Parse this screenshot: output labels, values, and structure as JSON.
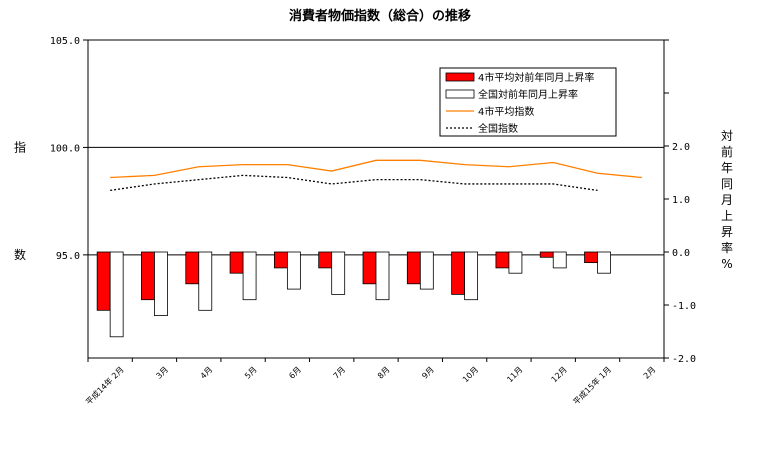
{
  "chart_data": {
    "type": "bar",
    "title": "消費者物価指数（総合）の推移",
    "categories": [
      "平成14年 2月",
      "3月",
      "4月",
      "5月",
      "6月",
      "7月",
      "8月",
      "9月",
      "10月",
      "11月",
      "12月",
      "平成15年 1月",
      "2月"
    ],
    "left_axis": {
      "label": "指数",
      "ticks": [
        "105.0",
        "100.0",
        "95.0"
      ],
      "ylim": [
        90.2,
        105.0
      ]
    },
    "right_axis": {
      "label": "対前年同月上昇率%",
      "ticks": [
        "2.0",
        "1.0",
        "0.0",
        "-1.0",
        "-2.0"
      ],
      "ylim": [
        -2.0,
        4.0
      ]
    },
    "series": [
      {
        "name": "4市平均対前年同月上昇率",
        "type": "bar",
        "axis": "right",
        "color": "#ff0000",
        "values": [
          -1.1,
          -0.9,
          -0.6,
          -0.4,
          -0.3,
          -0.3,
          -0.6,
          -0.6,
          -0.8,
          -0.3,
          -0.1,
          -0.2,
          null
        ]
      },
      {
        "name": "全国対前年同月上昇率",
        "type": "bar",
        "axis": "right",
        "color": "#ffffff",
        "values": [
          -1.6,
          -1.2,
          -1.1,
          -0.9,
          -0.7,
          -0.8,
          -0.9,
          -0.7,
          -0.9,
          -0.4,
          -0.3,
          -0.4,
          null
        ]
      },
      {
        "name": "4市平均指数",
        "type": "line",
        "axis": "left",
        "color": "#ff8000",
        "values": [
          98.6,
          98.7,
          99.1,
          99.2,
          99.2,
          98.9,
          99.4,
          99.4,
          99.2,
          99.1,
          99.3,
          98.8,
          98.6
        ]
      },
      {
        "name": "全国指数",
        "type": "line",
        "axis": "left",
        "color": "#000000",
        "dash": true,
        "values": [
          98.0,
          98.3,
          98.5,
          98.7,
          98.6,
          98.3,
          98.5,
          98.5,
          98.3,
          98.3,
          98.3,
          98.0,
          null
        ]
      }
    ],
    "legend_position": "top-right"
  }
}
